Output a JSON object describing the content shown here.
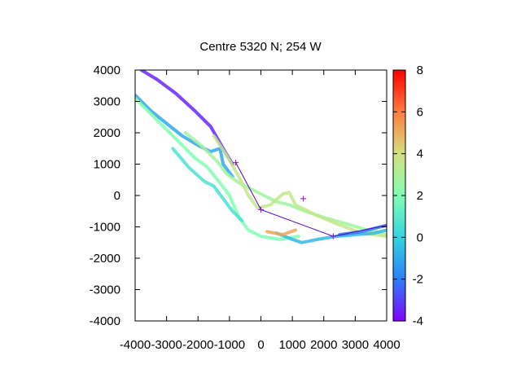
{
  "chart_data": {
    "type": "scatter",
    "title": "Centre 5320 N; 254  W",
    "xlim": [
      -4000,
      4000
    ],
    "ylim": [
      -4000,
      4000
    ],
    "xticks": [
      -4000,
      -3000,
      -2000,
      -1000,
      0,
      1000,
      2000,
      3000,
      4000
    ],
    "yticks": [
      -4000,
      -3000,
      -2000,
      -1000,
      0,
      1000,
      2000,
      3000,
      4000
    ],
    "colorbar": {
      "range": [
        -4,
        8
      ],
      "ticks": [
        -4,
        -2,
        0,
        2,
        4,
        6,
        8
      ],
      "palette": "rainbow",
      "colors": [
        "#8000ff",
        "#2c7ef7",
        "#34d2e1",
        "#80ffb4",
        "#d4e17f",
        "#ff7e41",
        "#ff0000"
      ]
    },
    "tracks": [
      {
        "points": [
          [
            -3800,
            4000
          ],
          [
            -3300,
            3700
          ],
          [
            -2700,
            3250
          ],
          [
            -2100,
            2700
          ],
          [
            -1600,
            2200
          ],
          [
            -1200,
            1500
          ],
          [
            -900,
            1000
          ]
        ],
        "value": -3.4
      },
      {
        "points": [
          [
            -4000,
            3200
          ],
          [
            -3500,
            2700
          ],
          [
            -3000,
            2300
          ],
          [
            -2500,
            1900
          ],
          [
            -2000,
            1600
          ],
          [
            -1600,
            1400
          ],
          [
            -1300,
            1500
          ],
          [
            -1200,
            1000
          ],
          [
            -900,
            600
          ]
        ],
        "value": -1.0
      },
      {
        "points": [
          [
            -4000,
            3100
          ],
          [
            -3300,
            2400
          ],
          [
            -2700,
            1800
          ],
          [
            -2100,
            1200
          ],
          [
            -1700,
            900
          ],
          [
            -1300,
            400
          ],
          [
            -1000,
            0
          ],
          [
            -700,
            -700
          ],
          [
            -400,
            -1100
          ],
          [
            0,
            -1300
          ],
          [
            600,
            -1400
          ],
          [
            1200,
            -1300
          ]
        ],
        "value": 2.0
      },
      {
        "points": [
          [
            -2400,
            2000
          ],
          [
            -1900,
            1600
          ],
          [
            -1400,
            1100
          ],
          [
            -1100,
            700
          ],
          [
            -700,
            400
          ],
          [
            -300,
            200
          ],
          [
            100,
            0
          ],
          [
            500,
            -200
          ],
          [
            900,
            -300
          ],
          [
            1400,
            -500
          ],
          [
            2000,
            -700
          ],
          [
            2700,
            -900
          ],
          [
            3400,
            -1100
          ],
          [
            4000,
            -1250
          ]
        ],
        "value": 2.8
      },
      {
        "points": [
          [
            -1500,
            1900
          ],
          [
            -1100,
            1300
          ],
          [
            -700,
            600
          ],
          [
            -400,
            0
          ],
          [
            -100,
            -400
          ],
          [
            300,
            -300
          ],
          [
            700,
            50
          ],
          [
            900,
            100
          ],
          [
            1100,
            -300
          ],
          [
            1700,
            -600
          ],
          [
            2400,
            -900
          ],
          [
            3200,
            -1200
          ],
          [
            4000,
            -1300
          ]
        ],
        "value": 3.6
      },
      {
        "points": [
          [
            500,
            -1200
          ],
          [
            1000,
            -1400
          ],
          [
            1300,
            -1500
          ],
          [
            1800,
            -1400
          ],
          [
            2400,
            -1300
          ],
          [
            3000,
            -1250
          ],
          [
            3600,
            -1200
          ],
          [
            4000,
            -1100
          ]
        ],
        "value": -0.6
      },
      {
        "points": [
          [
            2500,
            -1250
          ],
          [
            3200,
            -1150
          ],
          [
            4000,
            -950
          ]
        ],
        "value": -2.0
      },
      {
        "points": [
          [
            -2800,
            1500
          ],
          [
            -2300,
            900
          ],
          [
            -1800,
            450
          ],
          [
            -1500,
            300
          ],
          [
            -1200,
            -100
          ],
          [
            -900,
            -500
          ],
          [
            -600,
            -800
          ]
        ],
        "value": 0.6
      },
      {
        "points": [
          [
            200,
            -1150
          ],
          [
            700,
            -1250
          ],
          [
            1100,
            -1100
          ]
        ],
        "value": 5.2
      }
    ],
    "route": [
      [
        -800,
        1050
      ],
      [
        0,
        -450
      ],
      [
        2300,
        -1300
      ],
      [
        4000,
        -950
      ]
    ],
    "markers": [
      [
        -800,
        1050
      ],
      [
        0,
        -450
      ],
      [
        1350,
        -100
      ],
      [
        2300,
        -1300
      ]
    ]
  }
}
